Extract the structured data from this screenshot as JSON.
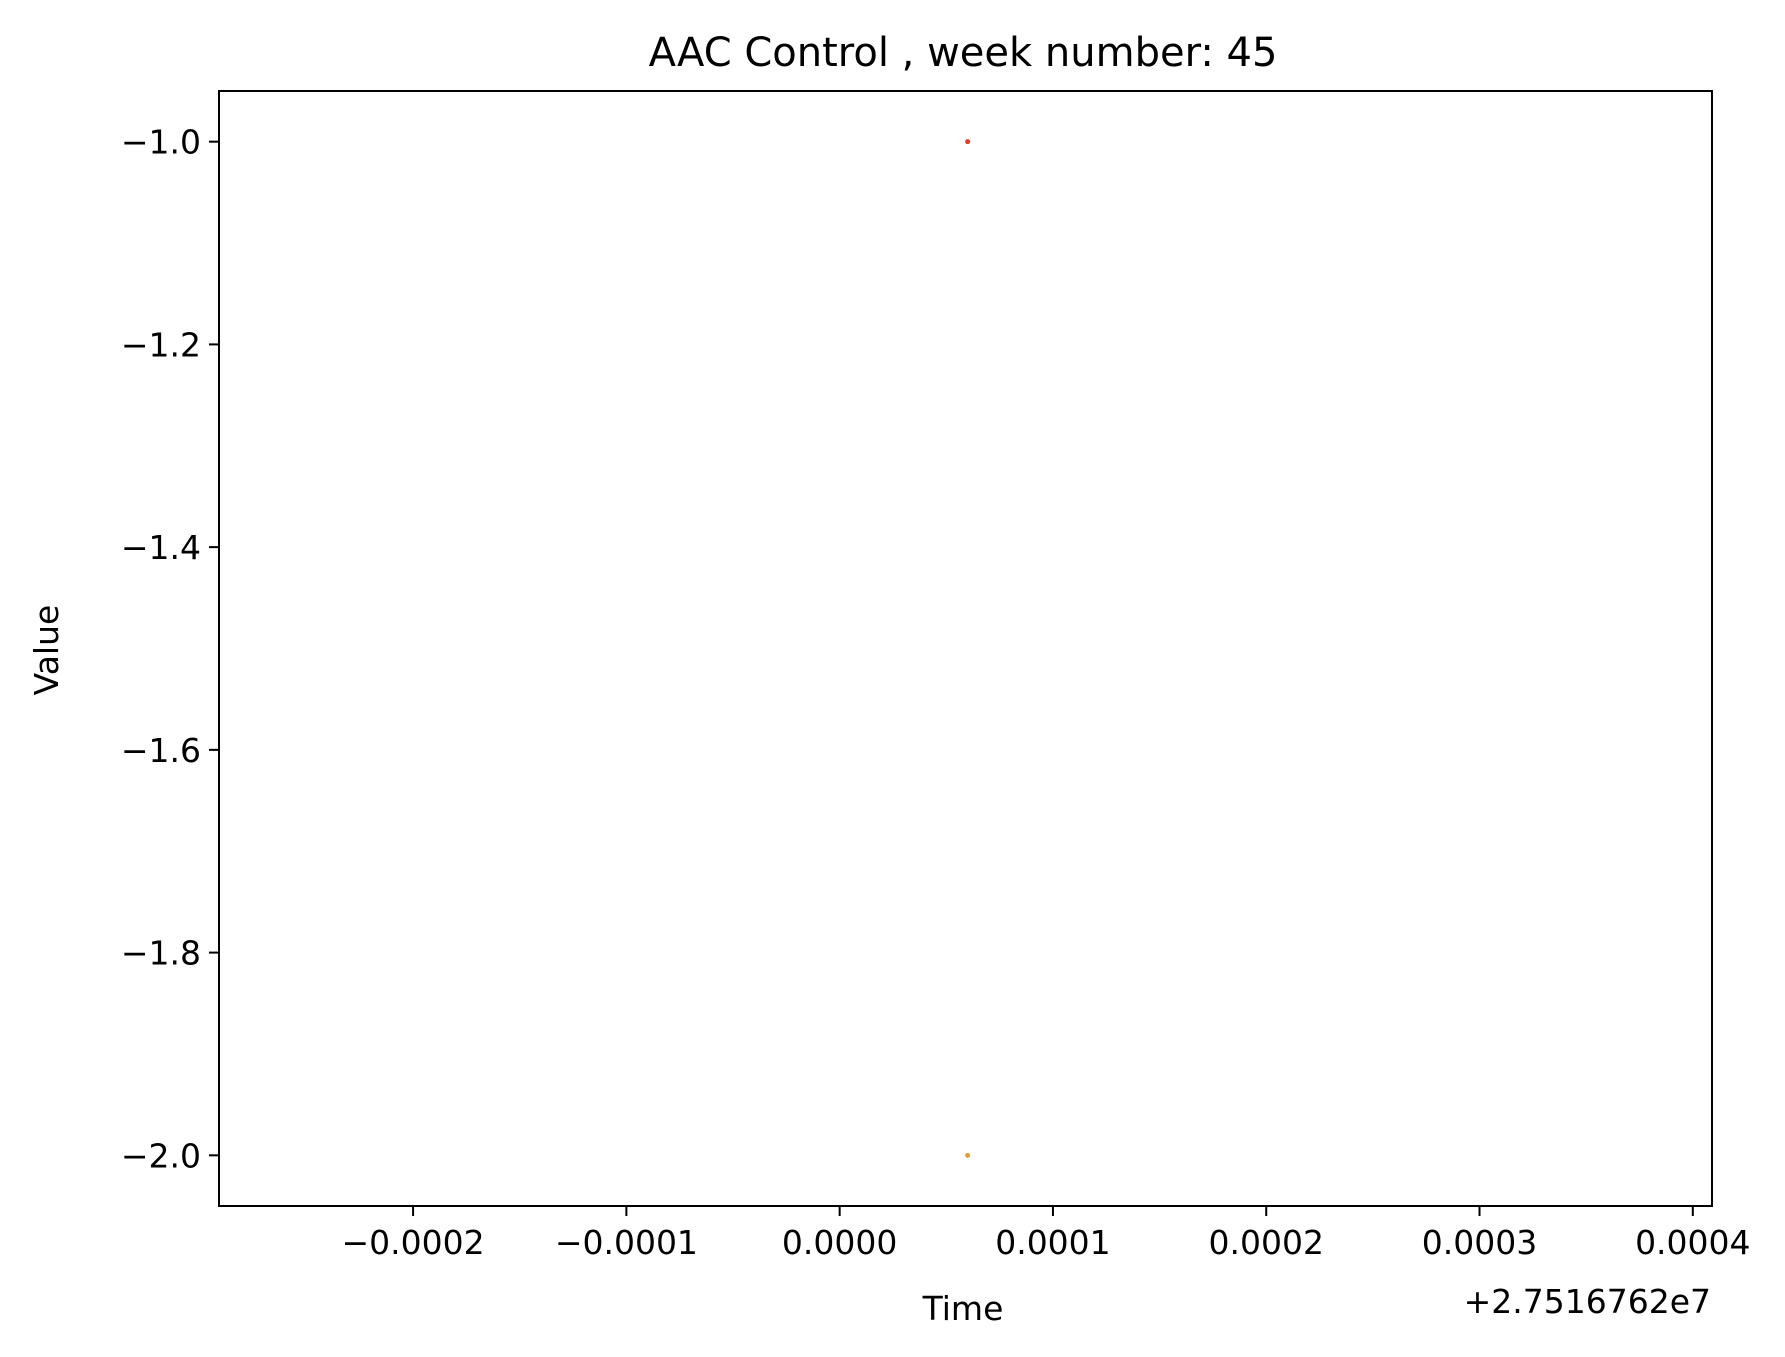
{
  "chart_data": {
    "type": "scatter",
    "title": "AAC Control , week number: 45",
    "xlabel": "Time",
    "ylabel": "Value",
    "x_offset_label": "+2.7516762e7",
    "x_offset": 27516762,
    "xlim": [
      -0.000291,
      0.000409
    ],
    "ylim": [
      -2.05,
      -0.95
    ],
    "x_ticks": [
      -0.0002,
      -0.0001,
      0.0,
      0.0001,
      0.0002,
      0.0003,
      0.0004
    ],
    "x_tick_labels": [
      "−0.0002",
      "−0.0001",
      "0.0000",
      "0.0001",
      "0.0002",
      "0.0003",
      "0.0004"
    ],
    "y_ticks": [
      -1.0,
      -1.2,
      -1.4,
      -1.6,
      -1.8,
      -2.0
    ],
    "y_tick_labels": [
      "−1.0",
      "−1.2",
      "−1.4",
      "−1.6",
      "−1.8",
      "−2.0"
    ],
    "grid": false,
    "series": [
      {
        "color": "#e8392b",
        "points": [
          {
            "x": 6e-05,
            "y": -1.0
          }
        ]
      },
      {
        "color": "#e3a02e",
        "points": [
          {
            "x": 6e-05,
            "y": -2.0
          }
        ]
      }
    ]
  }
}
